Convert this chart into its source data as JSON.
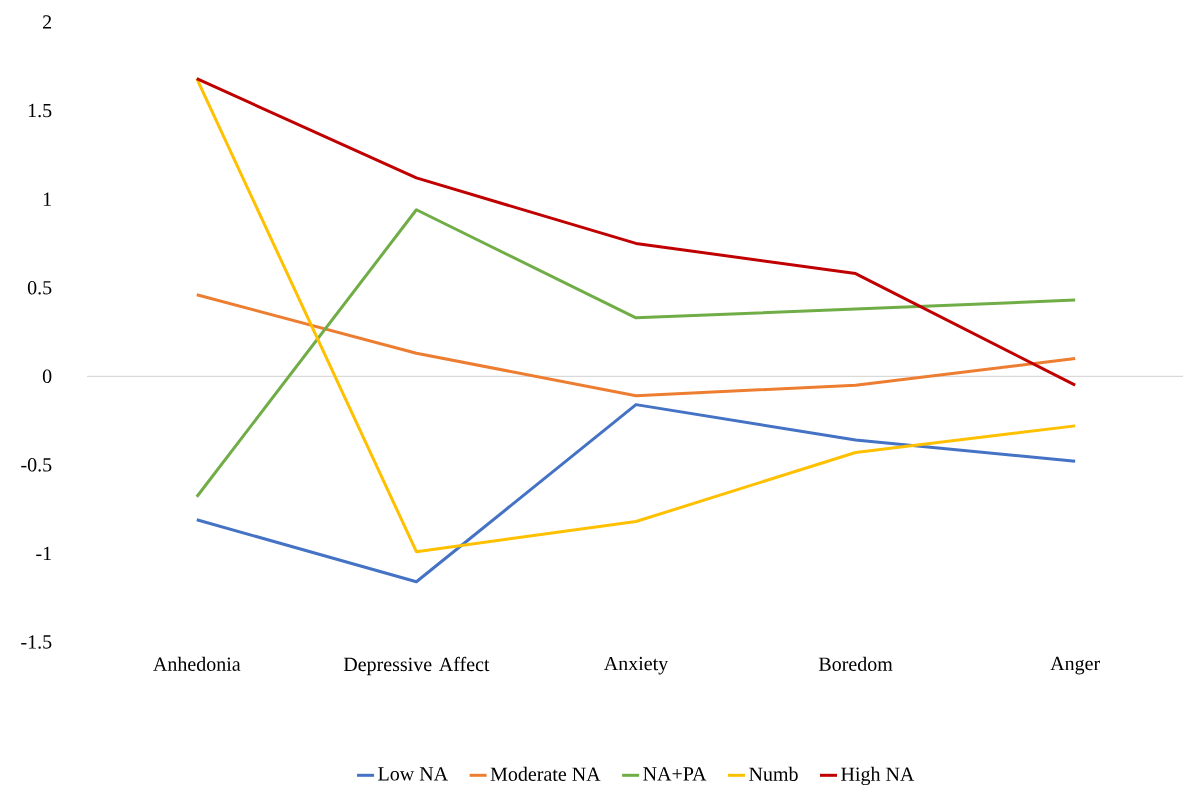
{
  "chart_data": {
    "type": "line",
    "categories": [
      "Anhedonia",
      "Depressive Affect",
      "Anxiety",
      "Boredom",
      "Anger"
    ],
    "series": [
      {
        "name": "Low NA",
        "color": "#4472c4",
        "values": [
          -0.81,
          -1.16,
          -0.16,
          -0.36,
          -0.48
        ]
      },
      {
        "name": "Moderate NA",
        "color": "#ed7d31",
        "values": [
          0.46,
          0.13,
          -0.11,
          -0.05,
          0.1
        ]
      },
      {
        "name": "NA+PA",
        "color": "#70ad47",
        "values": [
          -0.68,
          0.94,
          0.33,
          0.38,
          0.43
        ]
      },
      {
        "name": "Numb",
        "color": "#ffc000",
        "values": [
          1.68,
          -0.99,
          -0.82,
          -0.43,
          -0.28
        ]
      },
      {
        "name": "High NA",
        "color": "#c00000",
        "values": [
          1.68,
          1.12,
          0.75,
          0.58,
          -0.05
        ]
      }
    ],
    "ylim": [
      -1.5,
      2
    ],
    "yticks": [
      -1.5,
      -1,
      -0.5,
      0,
      0.5,
      1,
      1.5,
      2
    ],
    "legend": "bottom",
    "marker": "none",
    "line_style": "solid"
  }
}
